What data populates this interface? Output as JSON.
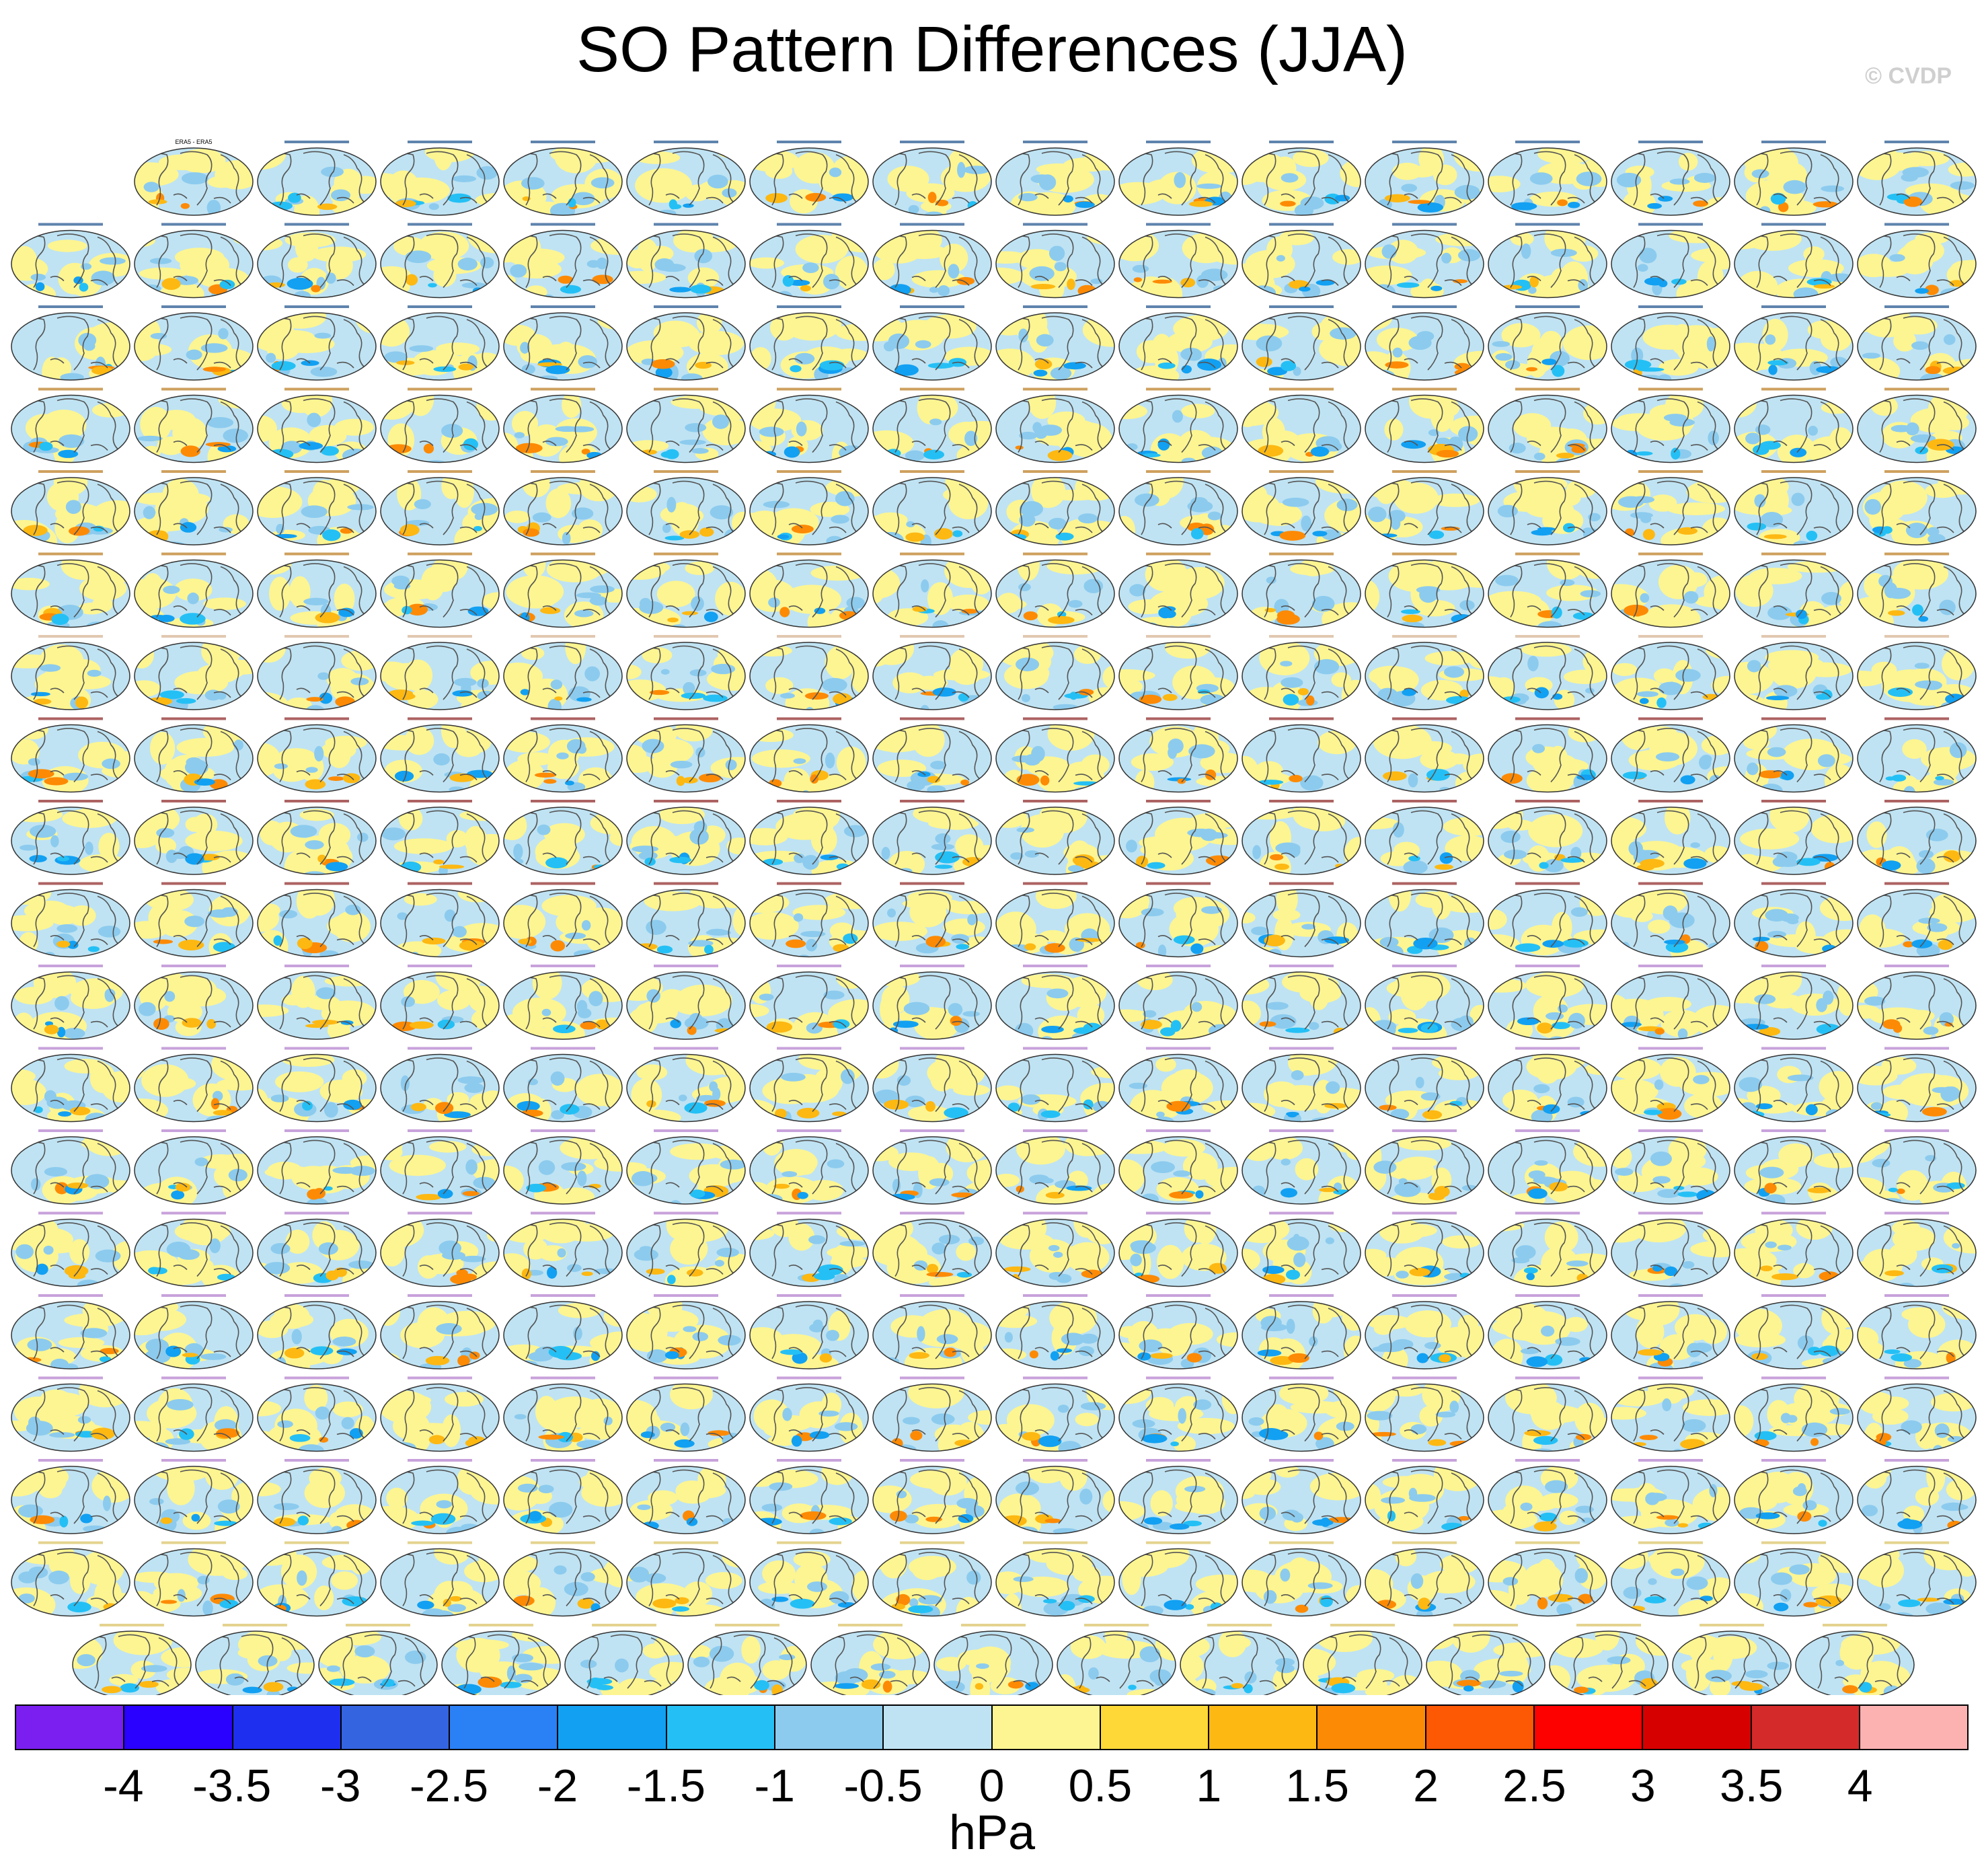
{
  "title": "SO Pattern Differences (JJA)",
  "watermark": "© CVDP",
  "colorbar": {
    "units": "hPa",
    "ticks": [
      "-4",
      "-3.5",
      "-3",
      "-2.5",
      "-2",
      "-1.5",
      "-1",
      "-0.5",
      "0",
      "0.5",
      "1",
      "1.5",
      "2",
      "2.5",
      "3",
      "3.5",
      "4"
    ],
    "colors": [
      "#7a1ff0",
      "#2a00ff",
      "#1e2ff0",
      "#3464e0",
      "#2a80f5",
      "#12a0f2",
      "#24c0f5",
      "#8ccbee",
      "#bfe3f3",
      "#fdf591",
      "#fdd836",
      "#fdb812",
      "#fd8a04",
      "#fd5804",
      "#fd0000",
      "#d60000",
      "#d42a2a",
      "#fdb2b2"
    ]
  },
  "panels": {
    "layout": "18 rows of 16 global maps, 1 final row of 15",
    "first_panel_label": "ERA5 - ERA5",
    "land_color": "#fdf591",
    "ocean_color": "#bfe3f3",
    "coast_color": "#555555",
    "label_colors": [
      "#1b4f8a",
      "#1b4f8a",
      "#1b4f8a",
      "#b9781a",
      "#b9781a",
      "#b9781a",
      "#d4b090",
      "#8a2020",
      "#8a2020",
      "#8a2020",
      "#b07acc",
      "#b07acc",
      "#b07acc",
      "#b07acc",
      "#b07acc",
      "#b07acc",
      "#b07acc",
      "#d8c060",
      "#d8c060"
    ]
  }
}
